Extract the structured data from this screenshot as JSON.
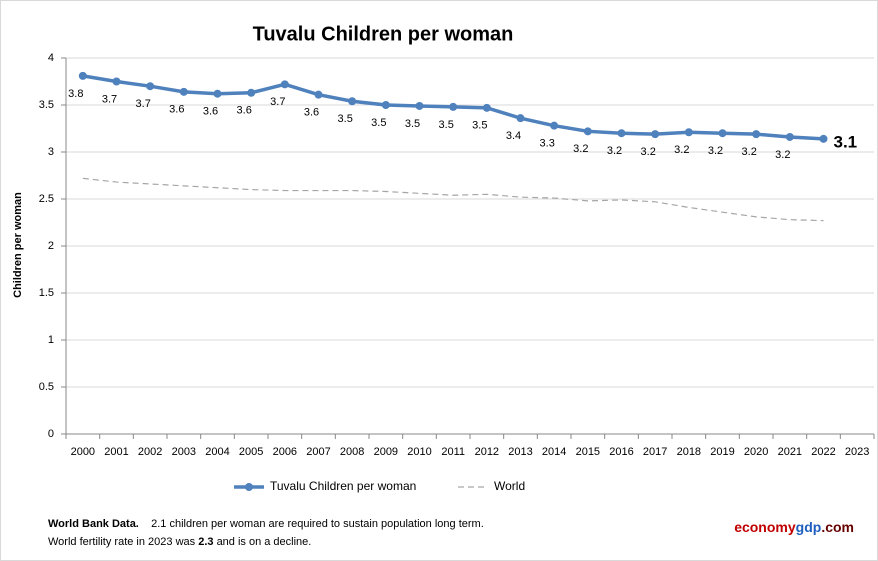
{
  "chart_data": {
    "type": "line",
    "title": "Tuvalu Children per woman",
    "y_label": "Children per woman",
    "categories": [
      "2000",
      "2001",
      "2002",
      "2003",
      "2004",
      "2005",
      "2006",
      "2007",
      "2008",
      "2009",
      "2010",
      "2011",
      "2012",
      "2013",
      "2014",
      "2015",
      "2016",
      "2017",
      "2018",
      "2019",
      "2020",
      "2021",
      "2022",
      "2023"
    ],
    "series": [
      {
        "name": "Tuvalu Children per woman",
        "color": "#4f81bd",
        "values": [
          3.81,
          3.75,
          3.7,
          3.64,
          3.62,
          3.63,
          3.72,
          3.61,
          3.54,
          3.5,
          3.49,
          3.48,
          3.47,
          3.36,
          3.28,
          3.22,
          3.2,
          3.19,
          3.21,
          3.2,
          3.19,
          3.16,
          3.14,
          null
        ],
        "value_labels": [
          "3.8",
          "3.7",
          "3.7",
          "3.6",
          "3.6",
          "3.6",
          "3.7",
          "3.6",
          "3.5",
          "3.5",
          "3.5",
          "3.5",
          "3.5",
          "3.4",
          "3.3",
          "3.2",
          "3.2",
          "3.2",
          "3.2",
          "3.2",
          "3.2",
          "3.2",
          "3.1",
          null
        ]
      },
      {
        "name": "World",
        "color": "#a6a6a6",
        "values": [
          2.72,
          2.68,
          2.66,
          2.64,
          2.62,
          2.6,
          2.59,
          2.59,
          2.59,
          2.58,
          2.56,
          2.54,
          2.55,
          2.52,
          2.51,
          2.48,
          2.49,
          2.47,
          2.41,
          2.36,
          2.31,
          2.28,
          2.27,
          null
        ]
      }
    ],
    "ylim": [
      0,
      4
    ],
    "yticks": [
      0,
      0.5,
      1,
      1.5,
      2,
      2.5,
      3,
      3.5,
      4
    ],
    "grid": true,
    "legend": "bottom"
  },
  "notes": {
    "source": "World Bank Data.",
    "line1": "2.1 children per woman are required to sustain population long term.",
    "line2_start": "World fertility rate in 2023 was",
    "line2_value": "2.3",
    "line2_end": "and is on a decline."
  },
  "brand": {
    "part1": "economy",
    "part2": "gdp",
    "part3": ".com"
  }
}
